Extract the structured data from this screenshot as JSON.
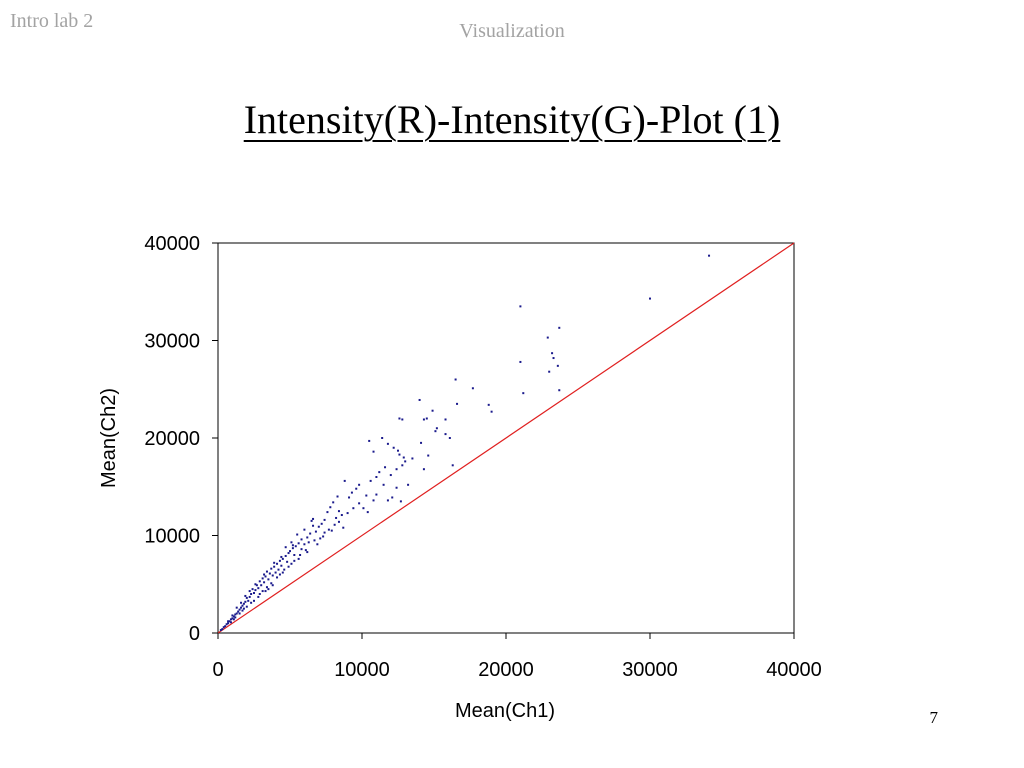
{
  "header": {
    "course": "Intro lab 2",
    "section": "Visualization"
  },
  "slide": {
    "title": "Intensity(R)-Intensity(G)-Plot (1)",
    "page_number": "7"
  },
  "colors": {
    "points": "#1a1a8c",
    "diagonal": "#e02020",
    "axis": "#000000"
  },
  "chart_data": {
    "type": "scatter",
    "xlabel": "Mean(Ch1)",
    "ylabel": "Mean(Ch2)",
    "xlim": [
      0,
      40000
    ],
    "ylim": [
      0,
      40000
    ],
    "xticks": [
      "0",
      "10000",
      "20000",
      "30000",
      "40000"
    ],
    "yticks": [
      "0",
      "10000",
      "20000",
      "30000",
      "40000"
    ],
    "grid": false,
    "legend": "none",
    "reference_line": {
      "from": [
        0,
        0
      ],
      "to": [
        40000,
        40000
      ]
    },
    "points": [
      [
        34100,
        38700
      ],
      [
        30000,
        34300
      ],
      [
        21000,
        33500
      ],
      [
        23700,
        31300
      ],
      [
        22900,
        30300
      ],
      [
        23200,
        28700
      ],
      [
        23300,
        28200
      ],
      [
        23600,
        27400
      ],
      [
        21000,
        27800
      ],
      [
        23000,
        26800
      ],
      [
        23700,
        24900
      ],
      [
        21200,
        24600
      ],
      [
        16500,
        26000
      ],
      [
        17700,
        25100
      ],
      [
        16600,
        23500
      ],
      [
        18800,
        23400
      ],
      [
        19000,
        22700
      ],
      [
        14000,
        23900
      ],
      [
        14900,
        22800
      ],
      [
        14500,
        22000
      ],
      [
        14300,
        21900
      ],
      [
        15800,
        21900
      ],
      [
        12600,
        22000
      ],
      [
        12800,
        21900
      ],
      [
        15200,
        21000
      ],
      [
        15100,
        20700
      ],
      [
        15800,
        20400
      ],
      [
        16100,
        20000
      ],
      [
        16300,
        17200
      ],
      [
        11400,
        20000
      ],
      [
        11800,
        19400
      ],
      [
        12200,
        19000
      ],
      [
        12500,
        18700
      ],
      [
        12600,
        18300
      ],
      [
        12900,
        18000
      ],
      [
        13000,
        17600
      ],
      [
        12800,
        17200
      ],
      [
        12400,
        16800
      ],
      [
        11600,
        17000
      ],
      [
        11200,
        16500
      ],
      [
        11000,
        16000
      ],
      [
        10600,
        15600
      ],
      [
        10500,
        19700
      ],
      [
        10800,
        18600
      ],
      [
        14600,
        18200
      ],
      [
        14300,
        16800
      ],
      [
        14100,
        19500
      ],
      [
        13200,
        15200
      ],
      [
        12400,
        14900
      ],
      [
        12100,
        13900
      ],
      [
        11800,
        13600
      ],
      [
        12700,
        13500
      ],
      [
        11000,
        14200
      ],
      [
        10800,
        13600
      ],
      [
        10100,
        12800
      ],
      [
        10400,
        12400
      ],
      [
        9800,
        15200
      ],
      [
        9600,
        14800
      ],
      [
        9300,
        14400
      ],
      [
        9100,
        13900
      ],
      [
        8800,
        15600
      ],
      [
        9400,
        12800
      ],
      [
        8300,
        14000
      ],
      [
        8000,
        13400
      ],
      [
        7800,
        12900
      ],
      [
        8400,
        12500
      ],
      [
        8600,
        12100
      ],
      [
        8200,
        11800
      ],
      [
        7600,
        12400
      ],
      [
        7400,
        11600
      ],
      [
        7200,
        11200
      ],
      [
        8100,
        11100
      ],
      [
        8700,
        10800
      ],
      [
        7900,
        10500
      ],
      [
        7400,
        10300
      ],
      [
        7000,
        10900
      ],
      [
        6800,
        10400
      ],
      [
        6600,
        11000
      ],
      [
        6400,
        10200
      ],
      [
        6200,
        9800
      ],
      [
        7100,
        9700
      ],
      [
        6700,
        9500
      ],
      [
        6300,
        9300
      ],
      [
        6000,
        9100
      ],
      [
        5800,
        9600
      ],
      [
        5600,
        9200
      ],
      [
        5400,
        8900
      ],
      [
        5800,
        8600
      ],
      [
        5200,
        8700
      ],
      [
        5000,
        8400
      ],
      [
        5300,
        8000
      ],
      [
        4900,
        8200
      ],
      [
        4700,
        7900
      ],
      [
        4500,
        7600
      ],
      [
        4800,
        7300
      ],
      [
        4300,
        7400
      ],
      [
        4100,
        7100
      ],
      [
        4400,
        6900
      ],
      [
        3900,
        6800
      ],
      [
        4200,
        6500
      ],
      [
        3700,
        6600
      ],
      [
        4000,
        6200
      ],
      [
        3600,
        6100
      ],
      [
        3400,
        6300
      ],
      [
        3800,
        5900
      ],
      [
        3300,
        5800
      ],
      [
        3500,
        5500
      ],
      [
        3100,
        5600
      ],
      [
        3200,
        5200
      ],
      [
        2900,
        5300
      ],
      [
        3000,
        4900
      ],
      [
        2700,
        4900
      ],
      [
        2800,
        4600
      ],
      [
        2600,
        4400
      ],
      [
        2400,
        4500
      ],
      [
        2500,
        4100
      ],
      [
        2300,
        4000
      ],
      [
        2200,
        3700
      ],
      [
        2000,
        3600
      ],
      [
        2100,
        3300
      ],
      [
        1900,
        3200
      ],
      [
        1800,
        3000
      ],
      [
        1700,
        2800
      ],
      [
        1600,
        2600
      ],
      [
        1500,
        2400
      ],
      [
        1400,
        2200
      ],
      [
        1300,
        2000
      ],
      [
        1200,
        1900
      ],
      [
        1100,
        1700
      ],
      [
        1000,
        1500
      ],
      [
        900,
        1400
      ],
      [
        800,
        1200
      ],
      [
        700,
        1000
      ],
      [
        600,
        900
      ],
      [
        500,
        700
      ],
      [
        400,
        600
      ],
      [
        300,
        400
      ],
      [
        200,
        300
      ],
      [
        3100,
        4300
      ],
      [
        2900,
        4000
      ],
      [
        3400,
        4700
      ],
      [
        3700,
        5100
      ],
      [
        4100,
        5700
      ],
      [
        4500,
        6200
      ],
      [
        4900,
        6800
      ],
      [
        5300,
        7400
      ],
      [
        5700,
        8000
      ],
      [
        6100,
        8500
      ],
      [
        2600,
        5000
      ],
      [
        2200,
        4300
      ],
      [
        1900,
        3800
      ],
      [
        1600,
        3100
      ],
      [
        1300,
        2600
      ],
      [
        4700,
        8800
      ],
      [
        5100,
        9300
      ],
      [
        5500,
        10100
      ],
      [
        6000,
        10600
      ],
      [
        6500,
        11500
      ],
      [
        1800,
        2500
      ],
      [
        2300,
        3100
      ],
      [
        2800,
        3700
      ],
      [
        3300,
        4300
      ],
      [
        3800,
        4900
      ],
      [
        1500,
        2000
      ],
      [
        1100,
        1400
      ],
      [
        2000,
        2700
      ],
      [
        2500,
        3300
      ],
      [
        3500,
        4500
      ],
      [
        900,
        1100
      ],
      [
        1200,
        1600
      ],
      [
        1700,
        2300
      ],
      [
        700,
        1200
      ],
      [
        1000,
        1800
      ],
      [
        4300,
        6000
      ],
      [
        4600,
        6500
      ],
      [
        5100,
        7100
      ],
      [
        5600,
        7600
      ],
      [
        6200,
        8300
      ],
      [
        6900,
        9100
      ],
      [
        7300,
        9900
      ],
      [
        7700,
        10600
      ],
      [
        8400,
        11400
      ],
      [
        9000,
        12300
      ],
      [
        9800,
        13300
      ],
      [
        10300,
        14100
      ],
      [
        11500,
        15200
      ],
      [
        12000,
        16200
      ],
      [
        13500,
        17900
      ],
      [
        3200,
        6000
      ],
      [
        3900,
        7200
      ],
      [
        4400,
        7800
      ],
      [
        5200,
        9000
      ],
      [
        6600,
        11700
      ]
    ]
  }
}
